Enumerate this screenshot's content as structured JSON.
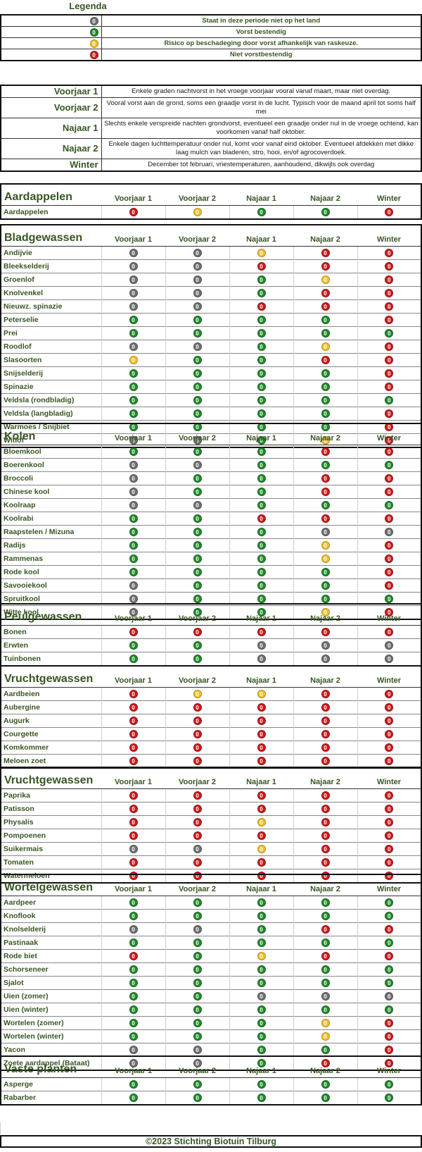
{
  "legend": {
    "title": "Legenda",
    "items": [
      {
        "symbol": "0",
        "color": "grey",
        "text": "Staat in deze periode niet op het land"
      },
      {
        "symbol": "0",
        "color": "green",
        "text": "Vorst bestendig"
      },
      {
        "symbol": "0",
        "color": "yellow",
        "text": "Risico op beschadeging door vorst afhankelijk van raskeuze."
      },
      {
        "symbol": "0",
        "color": "red",
        "text": "Niet vorstbestendig"
      }
    ]
  },
  "colors": {
    "grey": "#6f6f6f",
    "green": "#1f8a2a",
    "yellow": "#f2c12e",
    "red": "#c81c1c",
    "label_green": "#375623"
  },
  "seasons": [
    {
      "name": "Voorjaar 1",
      "description": "Enkele graden nachtvorst in het vroege voorjaar vooral vanaf maart, maar niet overdag."
    },
    {
      "name": "Voorjaar 2",
      "description": "Vooral vorst aan de grond, soms een graadje vorst in de lucht. Typisch voor de maand april tot soms half mei"
    },
    {
      "name": "Najaar 1",
      "description": "Slechts enkele verspreide nachten grondvorst, eventueel een graadje onder nul in de vroege ochtend, kan voorkomen vanaf half oktober."
    },
    {
      "name": "Najaar 2",
      "description": "Enkele dagen luchttemperatuur onder nul, komt voor vanaf eind oktober. Eventueel afdekken met dikke laag mulch van bladeren, stro, hooi, en/of agrocoverdoek."
    },
    {
      "name": "Winter",
      "description": "December tot februari, vriestemperaturen, aanhoudend, dikwijls ook overdag"
    }
  ],
  "columns": [
    "Voorjaar 1",
    "Voorjaar 2",
    "Najaar 1",
    "Najaar 2",
    "Winter"
  ],
  "groups": [
    {
      "name": "Aardappelen",
      "rows": [
        {
          "crop": "Aardappelen",
          "status": [
            "red",
            "yellow",
            "green",
            "green",
            "red"
          ]
        }
      ]
    },
    {
      "name": "Bladgewassen",
      "rows": [
        {
          "crop": "Andijvie",
          "status": [
            "grey",
            "grey",
            "yellow",
            "red",
            "red"
          ]
        },
        {
          "crop": "Bleekselderij",
          "status": [
            "grey",
            "grey",
            "red",
            "red",
            "red"
          ]
        },
        {
          "crop": "Groenlof",
          "status": [
            "grey",
            "grey",
            "green",
            "yellow",
            "red"
          ]
        },
        {
          "crop": "Knolvenkel",
          "status": [
            "grey",
            "grey",
            "green",
            "red",
            "red"
          ]
        },
        {
          "crop": "Nieuwz. spinazie",
          "status": [
            "grey",
            "grey",
            "red",
            "red",
            "red"
          ]
        },
        {
          "crop": "Peterselie",
          "status": [
            "green",
            "green",
            "green",
            "green",
            "red"
          ]
        },
        {
          "crop": "Prei",
          "status": [
            "green",
            "green",
            "green",
            "green",
            "green"
          ]
        },
        {
          "crop": "Roodlof",
          "status": [
            "grey",
            "grey",
            "green",
            "yellow",
            "red"
          ]
        },
        {
          "crop": "Slasoorten",
          "status": [
            "yellow",
            "green",
            "green",
            "red",
            "red"
          ]
        },
        {
          "crop": "Snijselderij",
          "status": [
            "green",
            "green",
            "green",
            "green",
            "red"
          ]
        },
        {
          "crop": "Spinazie",
          "status": [
            "green",
            "green",
            "green",
            "green",
            "red"
          ]
        },
        {
          "crop": "Veldsla (rondbladig)",
          "status": [
            "green",
            "green",
            "green",
            "green",
            "green"
          ]
        },
        {
          "crop": "Veldsla (langbladig)",
          "status": [
            "green",
            "green",
            "green",
            "green",
            "red"
          ]
        },
        {
          "crop": "Warmoes / Snijbiet",
          "status": [
            "green",
            "green",
            "green",
            "green",
            "red"
          ]
        },
        {
          "crop": "Witlof",
          "status": [
            "grey",
            "grey",
            "green",
            "yellow",
            "red"
          ]
        }
      ]
    },
    {
      "name": "Kolen",
      "rows": [
        {
          "crop": "Bloemkool",
          "status": [
            "green",
            "green",
            "green",
            "red",
            "red"
          ]
        },
        {
          "crop": "Boerenkool",
          "status": [
            "grey",
            "grey",
            "green",
            "green",
            "green"
          ]
        },
        {
          "crop": "Broccoli",
          "status": [
            "grey",
            "green",
            "green",
            "red",
            "red"
          ]
        },
        {
          "crop": "Chinese kool",
          "status": [
            "grey",
            "green",
            "green",
            "red",
            "red"
          ]
        },
        {
          "crop": "Koolraap",
          "status": [
            "grey",
            "grey",
            "green",
            "green",
            "green"
          ]
        },
        {
          "crop": "Koolrabi",
          "status": [
            "green",
            "green",
            "red",
            "red",
            "red"
          ]
        },
        {
          "crop": "Raapstelen / Mizuna",
          "status": [
            "green",
            "green",
            "green",
            "grey",
            "grey"
          ]
        },
        {
          "crop": "Radijs",
          "status": [
            "green",
            "green",
            "green",
            "yellow",
            "red"
          ]
        },
        {
          "crop": "Rammenas",
          "status": [
            "green",
            "green",
            "green",
            "yellow",
            "red"
          ]
        },
        {
          "crop": "Rode kool",
          "status": [
            "green",
            "green",
            "green",
            "green",
            "red"
          ]
        },
        {
          "crop": "Savooiekool",
          "status": [
            "grey",
            "green",
            "green",
            "green",
            "red"
          ]
        },
        {
          "crop": "Spruitkool",
          "status": [
            "grey",
            "green",
            "green",
            "green",
            "green"
          ]
        },
        {
          "crop": "Witte kool",
          "status": [
            "grey",
            "green",
            "green",
            "yellow",
            "red"
          ]
        }
      ]
    },
    {
      "name": "Peulgewassen",
      "rows": [
        {
          "crop": "Bonen",
          "status": [
            "red",
            "red",
            "red",
            "red",
            "red"
          ]
        },
        {
          "crop": "Erwten",
          "status": [
            "green",
            "green",
            "grey",
            "grey",
            "grey"
          ]
        },
        {
          "crop": "Tuinbonen",
          "status": [
            "green",
            "green",
            "grey",
            "grey",
            "grey"
          ]
        }
      ]
    },
    {
      "name": "Vruchtgewassen",
      "rows": [
        {
          "crop": "Aardbeien",
          "status": [
            "red",
            "yellow",
            "yellow",
            "red",
            "red"
          ]
        },
        {
          "crop": "Aubergine",
          "status": [
            "red",
            "red",
            "red",
            "red",
            "red"
          ]
        },
        {
          "crop": "Augurk",
          "status": [
            "red",
            "red",
            "red",
            "red",
            "red"
          ]
        },
        {
          "crop": "Courgette",
          "status": [
            "red",
            "red",
            "red",
            "red",
            "red"
          ]
        },
        {
          "crop": "Komkommer",
          "status": [
            "red",
            "red",
            "red",
            "red",
            "red"
          ]
        },
        {
          "crop": "Meloen zoet",
          "status": [
            "red",
            "red",
            "red",
            "red",
            "red"
          ]
        }
      ]
    },
    {
      "name": "Vruchtgewassen",
      "rows": [
        {
          "crop": "Paprika",
          "status": [
            "red",
            "red",
            "red",
            "red",
            "red"
          ]
        },
        {
          "crop": "Patisson",
          "status": [
            "red",
            "red",
            "red",
            "red",
            "red"
          ]
        },
        {
          "crop": "Physalis",
          "status": [
            "red",
            "red",
            "yellow",
            "red",
            "red"
          ]
        },
        {
          "crop": "Pompoenen",
          "status": [
            "red",
            "red",
            "red",
            "red",
            "red"
          ]
        },
        {
          "crop": "Suikermais",
          "status": [
            "grey",
            "grey",
            "yellow",
            "red",
            "red"
          ]
        },
        {
          "crop": "Tomaten",
          "status": [
            "red",
            "red",
            "red",
            "red",
            "red"
          ]
        },
        {
          "crop": "Watermeloen",
          "status": [
            "red",
            "red",
            "red",
            "red",
            "red"
          ]
        }
      ]
    },
    {
      "name": "Wortelgewassen",
      "rows": [
        {
          "crop": "Aardpeer",
          "status": [
            "green",
            "green",
            "green",
            "green",
            "green"
          ]
        },
        {
          "crop": "Knoflook",
          "status": [
            "green",
            "green",
            "green",
            "green",
            "green"
          ]
        },
        {
          "crop": "Knolselderij",
          "status": [
            "grey",
            "grey",
            "green",
            "red",
            "red"
          ]
        },
        {
          "crop": "Pastinaak",
          "status": [
            "green",
            "green",
            "green",
            "green",
            "green"
          ]
        },
        {
          "crop": "Rode biet",
          "status": [
            "red",
            "green",
            "yellow",
            "red",
            "red"
          ]
        },
        {
          "crop": "Schorseneer",
          "status": [
            "green",
            "green",
            "green",
            "green",
            "green"
          ]
        },
        {
          "crop": "Sjalot",
          "status": [
            "green",
            "green",
            "green",
            "green",
            "green"
          ]
        },
        {
          "crop": "Uien (zomer)",
          "status": [
            "green",
            "green",
            "grey",
            "grey",
            "grey"
          ]
        },
        {
          "crop": "Uien (winter)",
          "status": [
            "green",
            "green",
            "green",
            "green",
            "green"
          ]
        },
        {
          "crop": "Wortelen (zomer)",
          "status": [
            "green",
            "green",
            "green",
            "yellow",
            "red"
          ]
        },
        {
          "crop": "Wortelen (winter)",
          "status": [
            "green",
            "green",
            "green",
            "yellow",
            "red"
          ]
        },
        {
          "crop": "Yacon",
          "status": [
            "grey",
            "grey",
            "green",
            "green",
            "red"
          ]
        },
        {
          "crop": "Zoete aardappel (Bataat)",
          "status": [
            "grey",
            "grey",
            "green",
            "red",
            "red"
          ]
        }
      ]
    },
    {
      "name": "Vaste planten",
      "rows": [
        {
          "crop": "Asperge",
          "status": [
            "green",
            "green",
            "green",
            "green",
            "green"
          ]
        },
        {
          "crop": "Rabarber",
          "status": [
            "green",
            "green",
            "green",
            "green",
            "green"
          ]
        }
      ]
    }
  ],
  "footer": "©2023 Stichting Biotuin Tilburg"
}
